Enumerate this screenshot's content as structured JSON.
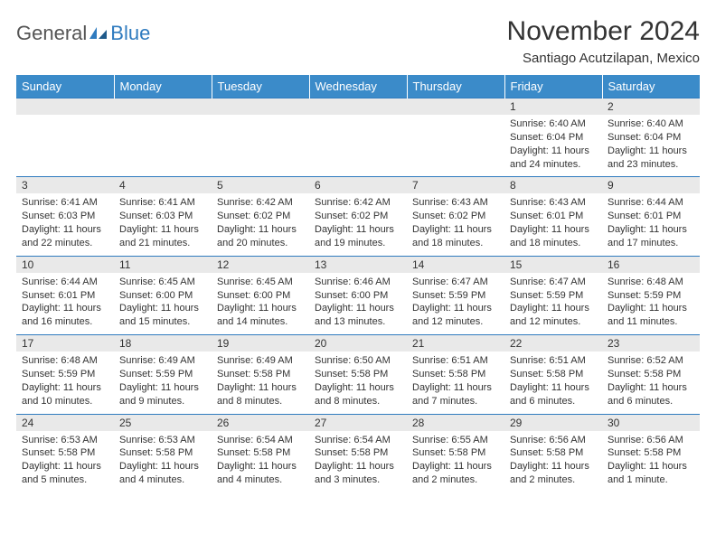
{
  "logo": {
    "general": "General",
    "blue": "Blue"
  },
  "title": "November 2024",
  "location": "Santiago Acutzilapan, Mexico",
  "colors": {
    "header_bg": "#3b8bc9",
    "header_text": "#ffffff",
    "daynum_bg": "#e9e9e9",
    "border": "#2f7bbf",
    "text": "#333333",
    "logo_gray": "#555555",
    "logo_blue": "#2f7bbf"
  },
  "weekdays": [
    "Sunday",
    "Monday",
    "Tuesday",
    "Wednesday",
    "Thursday",
    "Friday",
    "Saturday"
  ],
  "weeks": [
    [
      null,
      null,
      null,
      null,
      null,
      {
        "n": "1",
        "sr": "6:40 AM",
        "ss": "6:04 PM",
        "dl": "11 hours and 24 minutes."
      },
      {
        "n": "2",
        "sr": "6:40 AM",
        "ss": "6:04 PM",
        "dl": "11 hours and 23 minutes."
      }
    ],
    [
      {
        "n": "3",
        "sr": "6:41 AM",
        "ss": "6:03 PM",
        "dl": "11 hours and 22 minutes."
      },
      {
        "n": "4",
        "sr": "6:41 AM",
        "ss": "6:03 PM",
        "dl": "11 hours and 21 minutes."
      },
      {
        "n": "5",
        "sr": "6:42 AM",
        "ss": "6:02 PM",
        "dl": "11 hours and 20 minutes."
      },
      {
        "n": "6",
        "sr": "6:42 AM",
        "ss": "6:02 PM",
        "dl": "11 hours and 19 minutes."
      },
      {
        "n": "7",
        "sr": "6:43 AM",
        "ss": "6:02 PM",
        "dl": "11 hours and 18 minutes."
      },
      {
        "n": "8",
        "sr": "6:43 AM",
        "ss": "6:01 PM",
        "dl": "11 hours and 18 minutes."
      },
      {
        "n": "9",
        "sr": "6:44 AM",
        "ss": "6:01 PM",
        "dl": "11 hours and 17 minutes."
      }
    ],
    [
      {
        "n": "10",
        "sr": "6:44 AM",
        "ss": "6:01 PM",
        "dl": "11 hours and 16 minutes."
      },
      {
        "n": "11",
        "sr": "6:45 AM",
        "ss": "6:00 PM",
        "dl": "11 hours and 15 minutes."
      },
      {
        "n": "12",
        "sr": "6:45 AM",
        "ss": "6:00 PM",
        "dl": "11 hours and 14 minutes."
      },
      {
        "n": "13",
        "sr": "6:46 AM",
        "ss": "6:00 PM",
        "dl": "11 hours and 13 minutes."
      },
      {
        "n": "14",
        "sr": "6:47 AM",
        "ss": "5:59 PM",
        "dl": "11 hours and 12 minutes."
      },
      {
        "n": "15",
        "sr": "6:47 AM",
        "ss": "5:59 PM",
        "dl": "11 hours and 12 minutes."
      },
      {
        "n": "16",
        "sr": "6:48 AM",
        "ss": "5:59 PM",
        "dl": "11 hours and 11 minutes."
      }
    ],
    [
      {
        "n": "17",
        "sr": "6:48 AM",
        "ss": "5:59 PM",
        "dl": "11 hours and 10 minutes."
      },
      {
        "n": "18",
        "sr": "6:49 AM",
        "ss": "5:59 PM",
        "dl": "11 hours and 9 minutes."
      },
      {
        "n": "19",
        "sr": "6:49 AM",
        "ss": "5:58 PM",
        "dl": "11 hours and 8 minutes."
      },
      {
        "n": "20",
        "sr": "6:50 AM",
        "ss": "5:58 PM",
        "dl": "11 hours and 8 minutes."
      },
      {
        "n": "21",
        "sr": "6:51 AM",
        "ss": "5:58 PM",
        "dl": "11 hours and 7 minutes."
      },
      {
        "n": "22",
        "sr": "6:51 AM",
        "ss": "5:58 PM",
        "dl": "11 hours and 6 minutes."
      },
      {
        "n": "23",
        "sr": "6:52 AM",
        "ss": "5:58 PM",
        "dl": "11 hours and 6 minutes."
      }
    ],
    [
      {
        "n": "24",
        "sr": "6:53 AM",
        "ss": "5:58 PM",
        "dl": "11 hours and 5 minutes."
      },
      {
        "n": "25",
        "sr": "6:53 AM",
        "ss": "5:58 PM",
        "dl": "11 hours and 4 minutes."
      },
      {
        "n": "26",
        "sr": "6:54 AM",
        "ss": "5:58 PM",
        "dl": "11 hours and 4 minutes."
      },
      {
        "n": "27",
        "sr": "6:54 AM",
        "ss": "5:58 PM",
        "dl": "11 hours and 3 minutes."
      },
      {
        "n": "28",
        "sr": "6:55 AM",
        "ss": "5:58 PM",
        "dl": "11 hours and 2 minutes."
      },
      {
        "n": "29",
        "sr": "6:56 AM",
        "ss": "5:58 PM",
        "dl": "11 hours and 2 minutes."
      },
      {
        "n": "30",
        "sr": "6:56 AM",
        "ss": "5:58 PM",
        "dl": "11 hours and 1 minute."
      }
    ]
  ],
  "labels": {
    "sunrise": "Sunrise: ",
    "sunset": "Sunset: ",
    "daylight": "Daylight: "
  }
}
